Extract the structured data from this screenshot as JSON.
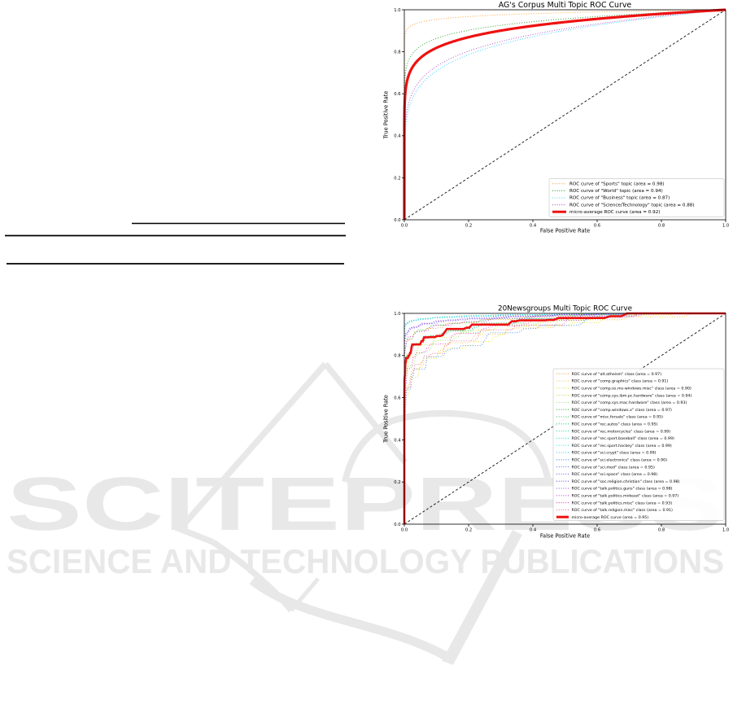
{
  "watermark": {
    "line1": "SCITEPRESS",
    "line2": "SCIENCE AND TECHNOLOGY PUBLICATIONS",
    "color": "#e8e8e8",
    "logo": "scitepress-kite-swoosh"
  },
  "colors": {
    "micro_average": "#ee1111",
    "diagonal_reference": "#111111",
    "legend_border": "#cccccc"
  },
  "chart_data": [
    {
      "type": "line",
      "title": "AG's Corpus Multi Topic ROC Curve",
      "xlabel": "False Positive Rate",
      "ylabel": "True Positive Rate",
      "xlim": [
        0.0,
        1.0
      ],
      "ylim": [
        0.0,
        1.0
      ],
      "xticks": [
        "0.0",
        "0.2",
        "0.4",
        "0.6",
        "0.8",
        "1.0"
      ],
      "yticks": [
        "0.0",
        "0.2",
        "0.4",
        "0.6",
        "0.8",
        "1.0"
      ],
      "grid": false,
      "legend_position": "lower right",
      "diagonal_reference": true,
      "series": [
        {
          "label": "ROC curve of \"Sports\" topic (area = 0.98)",
          "auc": 0.98,
          "color": "#ffa033",
          "style": "dotted"
        },
        {
          "label": "ROC curve of \"World\" topic (area = 0.94)",
          "auc": 0.94,
          "color": "#2f9e2f",
          "style": "dotted"
        },
        {
          "label": "ROC curve of \"Business\" topic (area = 0.87)",
          "auc": 0.87,
          "color": "#3dcfff",
          "style": "dotted"
        },
        {
          "label": "ROC curve of \"Science/Technology\" topic (area = 0.88)",
          "auc": 0.88,
          "color": "#b253c9",
          "style": "dotted"
        },
        {
          "label": "micro-average ROC curve (area = 0.92)",
          "auc": 0.92,
          "color": "#ee1111",
          "style": "solid-thick",
          "micro": true
        }
      ]
    },
    {
      "type": "line",
      "title": "20Newsgroups Multi Topic ROC Curve",
      "xlabel": "False Positive Rate",
      "ylabel": "True Positive Rate",
      "xlim": [
        0.0,
        1.0
      ],
      "ylim": [
        0.0,
        1.0
      ],
      "xticks": [
        "0.0",
        "0.2",
        "0.4",
        "0.6",
        "0.8",
        "1.0"
      ],
      "yticks": [
        "0.0",
        "0.2",
        "0.4",
        "0.6",
        "0.8",
        "1.0"
      ],
      "grid": false,
      "legend_position": "center right",
      "diagonal_reference": true,
      "noisy": true,
      "series": [
        {
          "label": "ROC curve of \"alt.atheism\" class (area = 0.97)",
          "auc": 0.97,
          "color": "#ffa133",
          "style": "dotted"
        },
        {
          "label": "ROC curve of \"comp.graphics\" class (area = 0.91)",
          "auc": 0.91,
          "color": "#f0c32e",
          "style": "dotted"
        },
        {
          "label": "ROC curve of \"comp.os.ms-windows.misc\" class (area = 0.90)",
          "auc": 0.9,
          "color": "#e3e22a",
          "style": "dotted"
        },
        {
          "label": "ROC curve of \"comp.sys.ibm.pc.hardware\" class (area = 0.94)",
          "auc": 0.94,
          "color": "#c3e42e",
          "style": "dotted"
        },
        {
          "label": "ROC curve of \"comp.sys.mac.hardware\" class (area = 0.93)",
          "auc": 0.93,
          "color": "#8fe96a",
          "style": "dotted"
        },
        {
          "label": "ROC curve of \"comp.windows.x\" class (area = 0.97)",
          "auc": 0.97,
          "color": "#33bb33",
          "style": "dotted"
        },
        {
          "label": "ROC curve of \"misc.forsale\" class (area = 0.95)",
          "auc": 0.95,
          "color": "#2ecc55",
          "style": "dotted"
        },
        {
          "label": "ROC curve of \"rec.autos\" class (area = 0.95)",
          "auc": 0.95,
          "color": "#29d183",
          "style": "dotted"
        },
        {
          "label": "ROC curve of \"rec.motorcycles\" class (area = 0.99)",
          "auc": 0.99,
          "color": "#29e0a8",
          "style": "dotted"
        },
        {
          "label": "ROC curve of \"rec.sport.baseball\" class (area = 0.99)",
          "auc": 0.99,
          "color": "#2ce4cc",
          "style": "dotted"
        },
        {
          "label": "ROC curve of \"rec.sport.hockey\" class (area = 0.99)",
          "auc": 0.99,
          "color": "#3ee6e6",
          "style": "dotted"
        },
        {
          "label": "ROC curve of \"sci.crypt\" class (area = 0.99)",
          "auc": 0.99,
          "color": "#35c2ef",
          "style": "dotted"
        },
        {
          "label": "ROC curve of \"sci.electronics\" class (area = 0.90)",
          "auc": 0.9,
          "color": "#3f8df2",
          "style": "dotted"
        },
        {
          "label": "ROC curve of \"sci.med\" class (area = 0.95)",
          "auc": 0.95,
          "color": "#5f7ff5",
          "style": "dotted"
        },
        {
          "label": "ROC curve of \"sci.space\" class (area = 0.98)",
          "auc": 0.98,
          "color": "#6d6af2",
          "style": "dotted"
        },
        {
          "label": "ROC curve of \"soc.religion.christian\" class (area = 0.98)",
          "auc": 0.98,
          "color": "#7d55ea",
          "style": "dotted"
        },
        {
          "label": "ROC curve of \"talk.politics.guns\" class (area = 0.98)",
          "auc": 0.98,
          "color": "#9a4ce2",
          "style": "dotted"
        },
        {
          "label": "ROC curve of \"talk.politics.mideast\" class (area = 0.97)",
          "auc": 0.97,
          "color": "#c24fd8",
          "style": "dotted"
        },
        {
          "label": "ROC curve of \"talk.politics.misc\" class (area = 0.93)",
          "auc": 0.93,
          "color": "#e93dbb",
          "style": "dotted"
        },
        {
          "label": "ROC curve of \"talk.religion.misc\" class (area = 0.91)",
          "auc": 0.91,
          "color": "#f467a7",
          "style": "dotted"
        },
        {
          "label": "micro-average ROC curve (area = 0.95)",
          "auc": 0.95,
          "color": "#ee1111",
          "style": "solid-thick",
          "micro": true
        }
      ]
    }
  ]
}
